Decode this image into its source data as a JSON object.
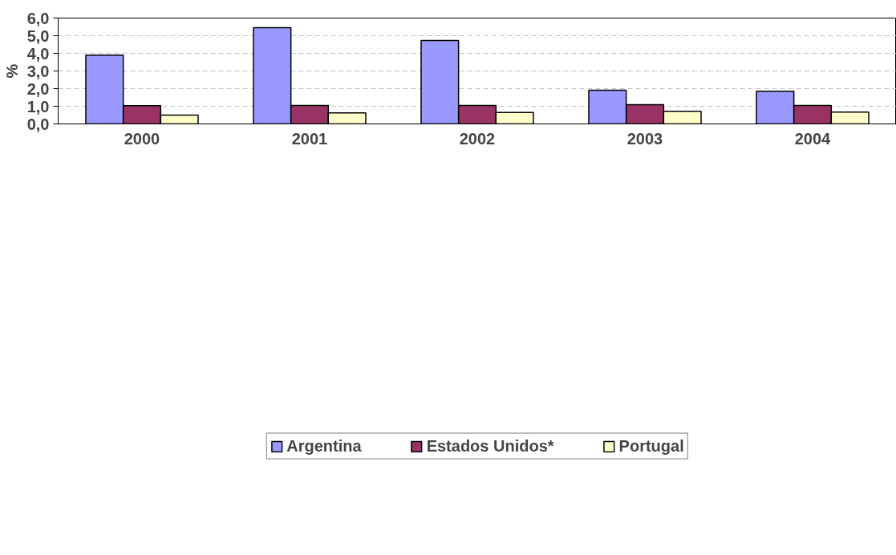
{
  "chart_data": {
    "type": "bar",
    "ylabel": "%",
    "categories": [
      "2000",
      "2001",
      "2002",
      "2003",
      "2004"
    ],
    "series": [
      {
        "name": "Argentina",
        "color": "#9999ff",
        "values": [
          3.9,
          5.46,
          4.73,
          1.91,
          1.85
        ]
      },
      {
        "name": "Estados Unidos*",
        "color": "#993366",
        "values": [
          1.03,
          1.05,
          1.04,
          1.09,
          1.05
        ]
      },
      {
        "name": "Portugal",
        "color": "#ffffcc",
        "values": [
          0.5,
          0.62,
          0.65,
          0.72,
          0.67
        ]
      }
    ],
    "ylim": [
      0,
      6
    ],
    "yticks": [
      {
        "value": 0,
        "label": "0,0"
      },
      {
        "value": 1,
        "label": "1,0"
      },
      {
        "value": 2,
        "label": "2,0"
      },
      {
        "value": 3,
        "label": "3,0"
      },
      {
        "value": 4,
        "label": "4,0"
      },
      {
        "value": 5,
        "label": "5,0"
      },
      {
        "value": 6,
        "label": "6,0"
      }
    ],
    "grid": "y",
    "legend": "bottom"
  }
}
